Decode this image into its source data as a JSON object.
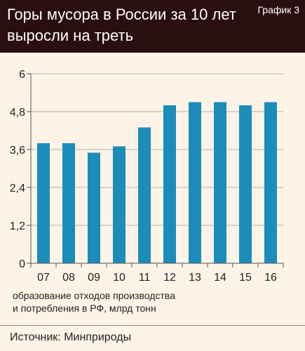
{
  "header": {
    "title_line1": "Горы мусора в России за 10 лет",
    "title_line2": "выросли на треть",
    "tag": "График 3"
  },
  "note": {
    "line1": "образование отходов производства",
    "line2": "и потребления в РФ, млрд тонн"
  },
  "source": "Источник: Минприроды",
  "colors": {
    "bar": "#1b8db8",
    "header_bg": "#2b0f10",
    "page_bg": "#fdf3e7",
    "grid": "#b9b0a6"
  },
  "chart_data": {
    "type": "bar",
    "categories": [
      "07",
      "08",
      "09",
      "10",
      "11",
      "12",
      "13",
      "14",
      "15",
      "16"
    ],
    "values": [
      3.8,
      3.8,
      3.5,
      3.7,
      4.3,
      5.0,
      5.1,
      5.1,
      5.0,
      5.1
    ],
    "yticks": [
      "0",
      "1,2",
      "2,4",
      "3,6",
      "4,8",
      "6"
    ],
    "ytick_values": [
      0,
      1.2,
      2.4,
      3.6,
      4.8,
      6
    ],
    "ylim": [
      0,
      6
    ],
    "grid": "horizontal"
  }
}
